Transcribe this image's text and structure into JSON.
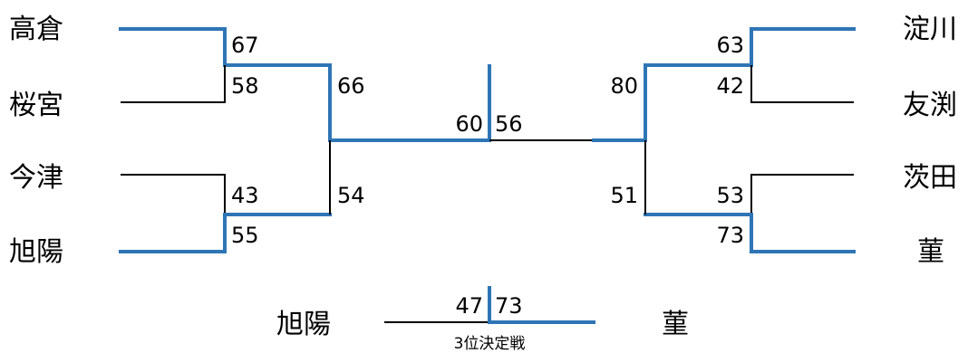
{
  "teams": {
    "left": [
      "高倉",
      "桜宮",
      "今津",
      "旭陽"
    ],
    "right": [
      "淀川",
      "友渕",
      "茨田",
      "菫"
    ]
  },
  "scores": {
    "r1_left_top": [
      "67",
      "58"
    ],
    "r1_left_bottom": [
      "43",
      "55"
    ],
    "r1_right_top": [
      "63",
      "42"
    ],
    "r1_right_bottom": [
      "53",
      "73"
    ],
    "semi_left": [
      "66",
      "54"
    ],
    "semi_right": [
      "80",
      "51"
    ],
    "final": [
      "60",
      "56"
    ]
  },
  "third_place": {
    "left_team": "旭陽",
    "right_team": "菫",
    "left_score": "47",
    "right_score": "73",
    "caption": "3位決定戦"
  },
  "colors": {
    "winner_line": "#2e75b6",
    "loser_line": "#000000"
  }
}
